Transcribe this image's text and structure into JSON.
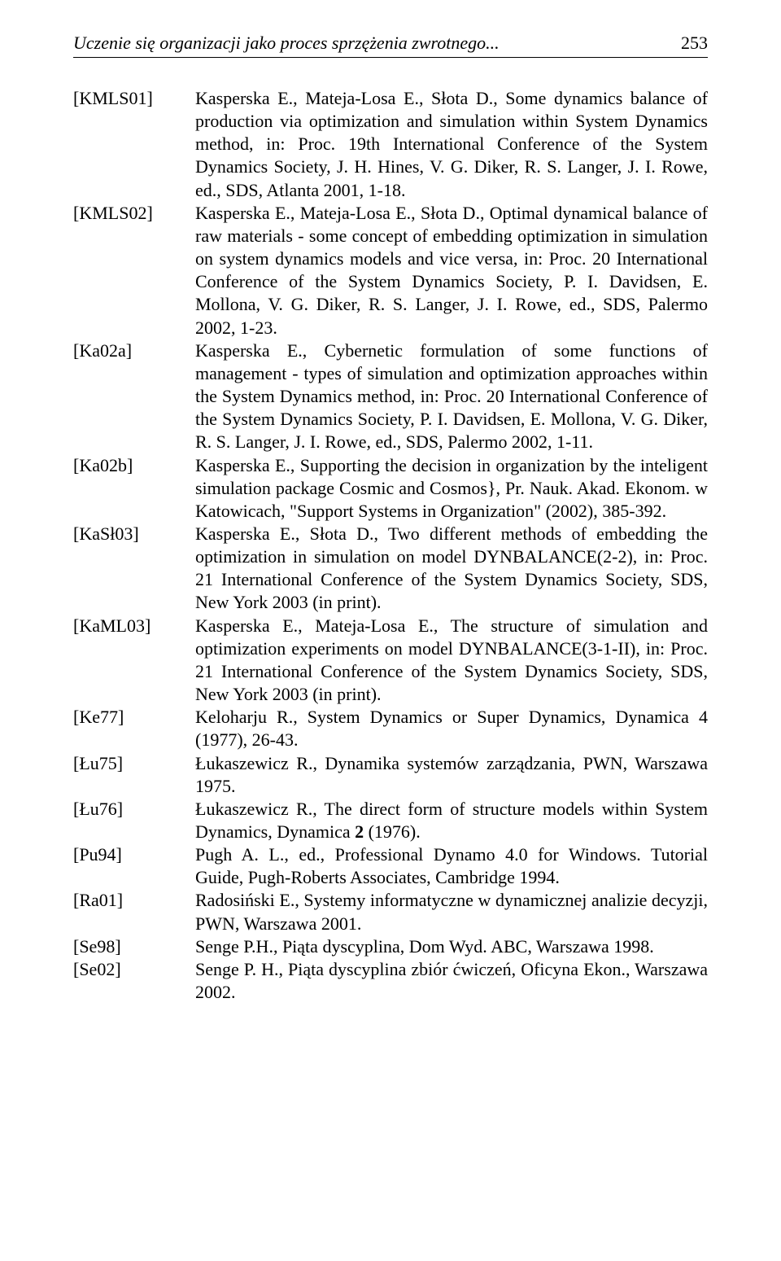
{
  "header": {
    "running_title": "Uczenie się organizacji jako proces sprzężenia zwrotnego...",
    "page_number": "253"
  },
  "references": [
    {
      "key": "[KMLS01]",
      "text": "Kasperska E., Mateja-Losa E., Słota D., Some dynamics balance of production via optimization and simulation within System Dynamics method, in: Proc. 19th International Conference of the System Dynamics Society, J. H. Hines, V. G. Diker, R. S. Langer, J. I. Rowe, ed., SDS, Atlanta 2001, 1-18."
    },
    {
      "key": "[KMLS02]",
      "text": "Kasperska E., Mateja-Losa E., Słota D., Optimal dynamical balance of raw materials - some concept of embedding optimization in simulation on system dynamics models and vice versa, in: Proc. 20 International Conference of the System Dynamics Society, P. I. Davidsen, E. Mollona, V. G. Diker, R. S. Langer, J. I. Rowe, ed., SDS, Palermo 2002, 1-23."
    },
    {
      "key": "[Ka02a]",
      "text": "Kasperska E., Cybernetic formulation of some functions of management - types of simulation and optimization approaches within the System Dynamics method, in: Proc. 20 International Conference of the System Dynamics Society, P. I. Davidsen, E. Mollona, V. G. Diker, R. S. Langer, J. I. Rowe, ed., SDS, Palermo 2002, 1-11."
    },
    {
      "key": "[Ka02b]",
      "text": "Kasperska E., Supporting the decision in organization by the inteligent simulation package Cosmic and Cosmos}, Pr. Nauk. Akad. Ekonom. w Katowicach, \"Support Systems in Organization\" (2002), 385-392."
    },
    {
      "key": "[KaSł03]",
      "text": "Kasperska E., Słota D., Two different methods of embedding the optimization in simulation on model DYNBALANCE(2-2), in: Proc. 21 International Conference of the System Dynamics Society, SDS, New York 2003 (in print)."
    },
    {
      "key": "[KaML03]",
      "text": "Kasperska E., Mateja-Losa E., The structure of simulation and optimization experiments on model DYNBALANCE(3-1-II), in: Proc. 21 International Conference of the System Dynamics Society, SDS, New York 2003 (in print)."
    },
    {
      "key": "[Ke77]",
      "text": "Keloharju R., System Dynamics or Super Dynamics, Dynamica 4 (1977), 26-43."
    },
    {
      "key": "[Łu75]",
      "text": "Łukaszewicz R., Dynamika systemów zarządzania, PWN, Warszawa 1975."
    },
    {
      "key": "[Łu76]",
      "text_pre": "Łukaszewicz R., The direct form of structure models within System Dynamics, Dynamica ",
      "bold": "2",
      "text_post": " (1976)."
    },
    {
      "key": "[Pu94]",
      "text": "Pugh A. L., ed., Professional Dynamo 4.0 for Windows. Tutorial Guide, Pugh-Roberts Associates, Cambridge 1994."
    },
    {
      "key": "[Ra01]",
      "text": "Radosiński E., Systemy informatyczne w dynamicznej analizie decyzji, PWN, Warszawa 2001."
    },
    {
      "key": "[Se98]",
      "text": "Senge P.H., Piąta dyscyplina, Dom Wyd. ABC, Warszawa 1998."
    },
    {
      "key": "[Se02]",
      "text": "Senge P. H., Piąta dyscyplina zbiór ćwiczeń, Oficyna Ekon., Warszawa 2002."
    }
  ]
}
